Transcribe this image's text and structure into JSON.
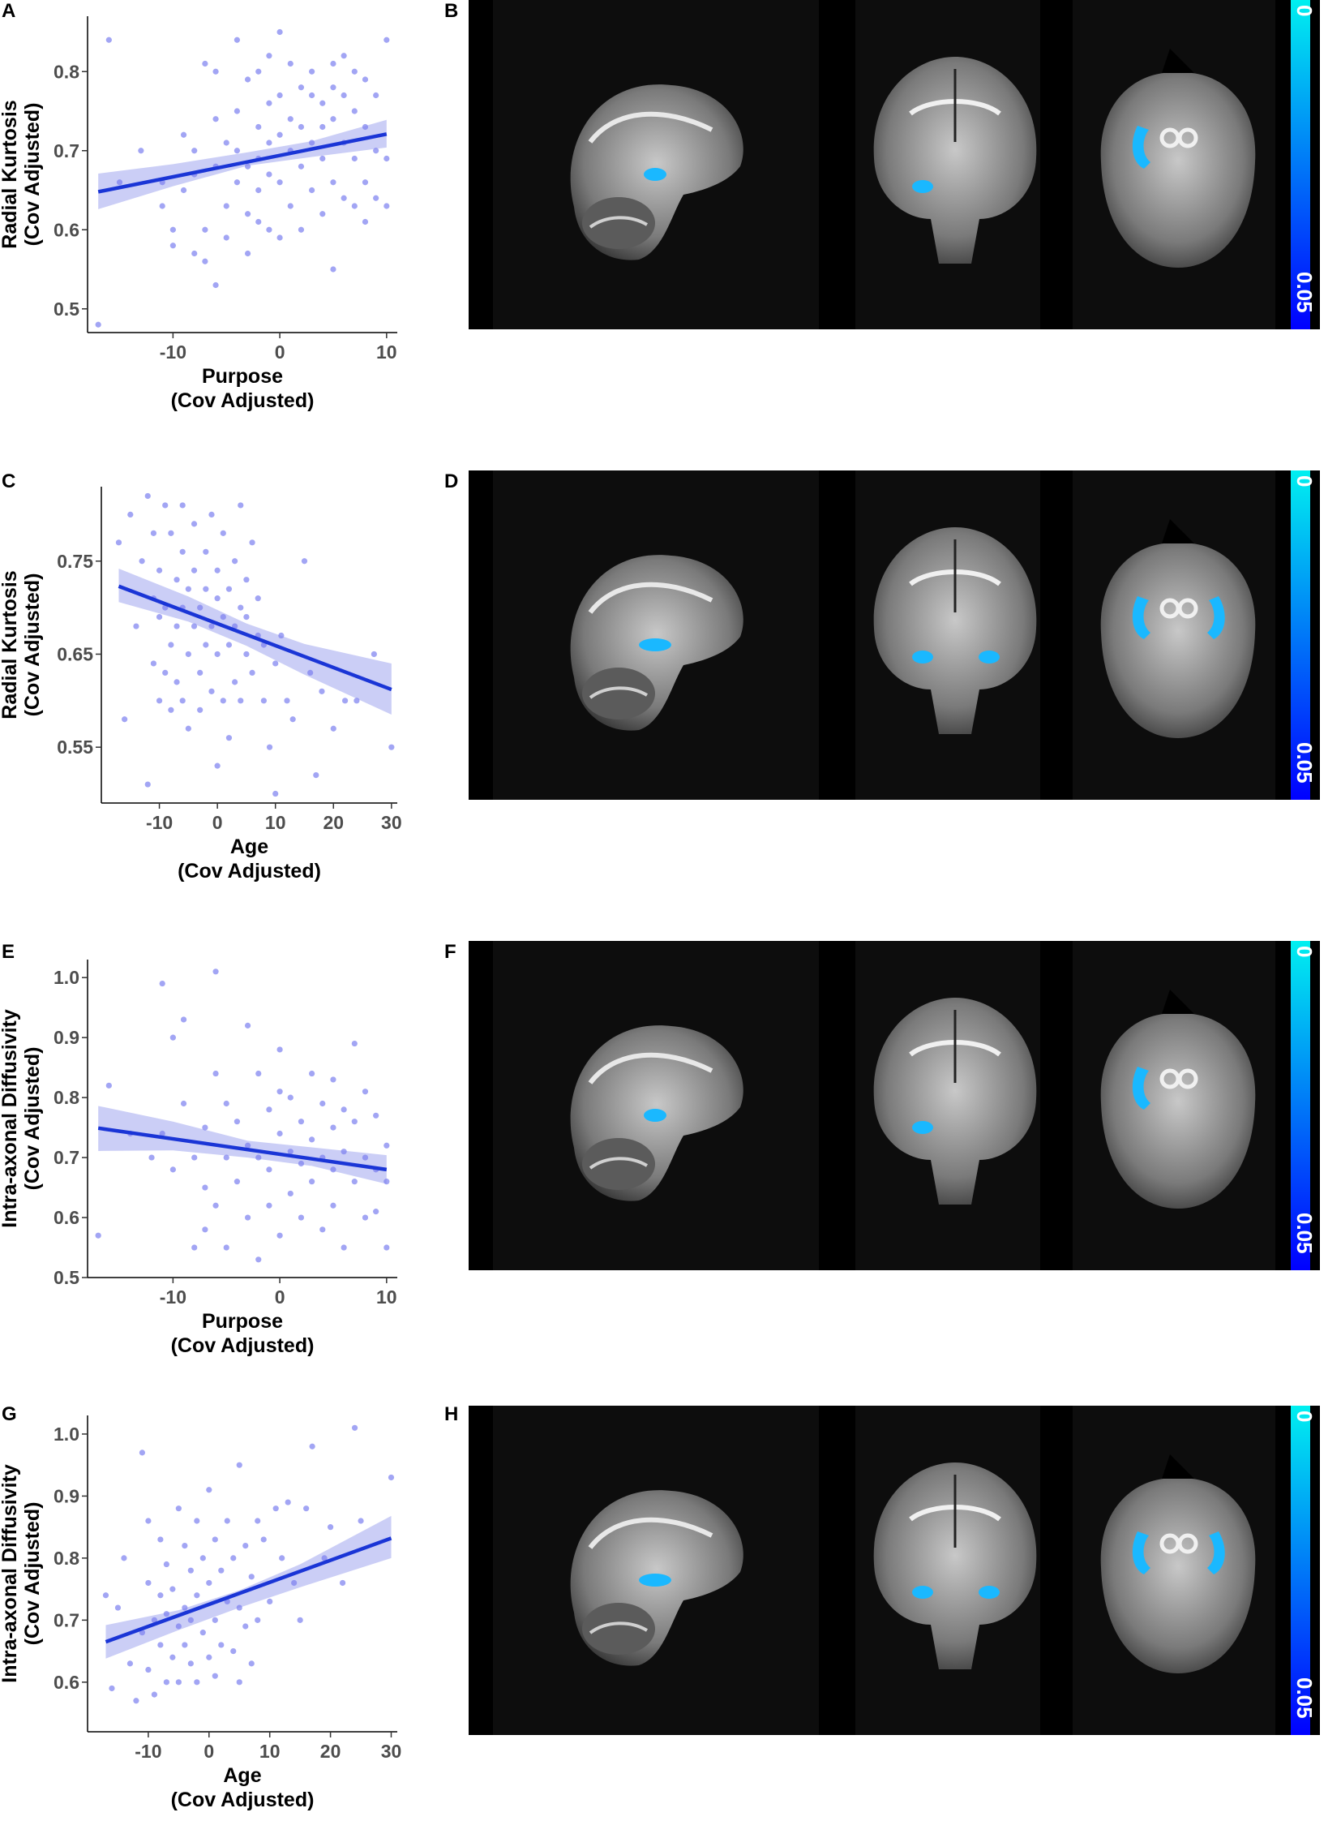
{
  "panel_letters": {
    "A": "A",
    "B": "B",
    "C": "C",
    "D": "D",
    "E": "E",
    "F": "F",
    "G": "G",
    "H": "H"
  },
  "colors": {
    "line": "#1a35d6",
    "points": "#7b7ff0",
    "band": "#b9bdf3",
    "colorbar_top": "#00f0f0",
    "colorbar_bottom": "#0000ff",
    "highlight": "#1ab8ff"
  },
  "colorbar": {
    "top_label": "0",
    "bottom_label": "0.05"
  },
  "brain_views": [
    "sagittal",
    "coronal",
    "axial"
  ],
  "chart_data": [
    {
      "type": "scatter",
      "panel": "A",
      "xlabel": "Purpose\n(Cov Adjusted)",
      "ylabel": "Radial Kurtosis\n(Cov Adjusted)",
      "xlim": [
        -18,
        11
      ],
      "ylim": [
        0.47,
        0.87
      ],
      "xticks": [
        -10,
        0,
        10
      ],
      "xtick_labels": [
        "-10",
        "0",
        "10"
      ],
      "yticks": [
        0.5,
        0.6,
        0.7,
        0.8
      ],
      "ytick_labels": [
        "0.5",
        "0.6",
        "0.7",
        "0.8"
      ],
      "fit_line": [
        [
          -17,
          0.648
        ],
        [
          10,
          0.721
        ]
      ],
      "band": {
        "x": [
          -17,
          -10,
          -3,
          3,
          10
        ],
        "lo": [
          0.626,
          0.655,
          0.681,
          0.692,
          0.704
        ],
        "hi": [
          0.671,
          0.683,
          0.698,
          0.712,
          0.739
        ]
      },
      "points": [
        [
          -17,
          0.48
        ],
        [
          -16,
          0.84
        ],
        [
          -15,
          0.66
        ],
        [
          -13,
          0.7
        ],
        [
          -11,
          0.66
        ],
        [
          -11,
          0.63
        ],
        [
          -10,
          0.58
        ],
        [
          -10,
          0.6
        ],
        [
          -9,
          0.65
        ],
        [
          -9,
          0.72
        ],
        [
          -8,
          0.67
        ],
        [
          -8,
          0.57
        ],
        [
          -8,
          0.7
        ],
        [
          -7,
          0.81
        ],
        [
          -7,
          0.56
        ],
        [
          -7,
          0.6
        ],
        [
          -6,
          0.8
        ],
        [
          -6,
          0.53
        ],
        [
          -6,
          0.68
        ],
        [
          -6,
          0.74
        ],
        [
          -5,
          0.63
        ],
        [
          -5,
          0.71
        ],
        [
          -5,
          0.59
        ],
        [
          -4,
          0.84
        ],
        [
          -4,
          0.75
        ],
        [
          -4,
          0.66
        ],
        [
          -4,
          0.7
        ],
        [
          -3,
          0.62
        ],
        [
          -3,
          0.57
        ],
        [
          -3,
          0.68
        ],
        [
          -3,
          0.79
        ],
        [
          -2,
          0.8
        ],
        [
          -2,
          0.73
        ],
        [
          -2,
          0.61
        ],
        [
          -2,
          0.69
        ],
        [
          -2,
          0.65
        ],
        [
          -1,
          0.76
        ],
        [
          -1,
          0.71
        ],
        [
          -1,
          0.67
        ],
        [
          -1,
          0.6
        ],
        [
          -1,
          0.82
        ],
        [
          0,
          0.85
        ],
        [
          0,
          0.72
        ],
        [
          0,
          0.66
        ],
        [
          0,
          0.59
        ],
        [
          0,
          0.77
        ],
        [
          1,
          0.74
        ],
        [
          1,
          0.7
        ],
        [
          1,
          0.63
        ],
        [
          1,
          0.81
        ],
        [
          2,
          0.78
        ],
        [
          2,
          0.68
        ],
        [
          2,
          0.6
        ],
        [
          2,
          0.73
        ],
        [
          3,
          0.77
        ],
        [
          3,
          0.71
        ],
        [
          3,
          0.65
        ],
        [
          3,
          0.8
        ],
        [
          4,
          0.76
        ],
        [
          4,
          0.69
        ],
        [
          4,
          0.62
        ],
        [
          4,
          0.73
        ],
        [
          5,
          0.81
        ],
        [
          5,
          0.74
        ],
        [
          5,
          0.66
        ],
        [
          5,
          0.55
        ],
        [
          5,
          0.78
        ],
        [
          6,
          0.82
        ],
        [
          6,
          0.71
        ],
        [
          6,
          0.64
        ],
        [
          6,
          0.77
        ],
        [
          7,
          0.8
        ],
        [
          7,
          0.69
        ],
        [
          7,
          0.63
        ],
        [
          7,
          0.75
        ],
        [
          8,
          0.73
        ],
        [
          8,
          0.66
        ],
        [
          8,
          0.61
        ],
        [
          8,
          0.79
        ],
        [
          9,
          0.77
        ],
        [
          9,
          0.7
        ],
        [
          9,
          0.64
        ],
        [
          10,
          0.84
        ],
        [
          10,
          0.69
        ],
        [
          10,
          0.63
        ]
      ]
    },
    {
      "type": "scatter",
      "panel": "C",
      "xlabel": "Age\n(Cov Adjusted)",
      "ylabel": "Radial Kurtosis\n(Cov Adjusted)",
      "xlim": [
        -20,
        31
      ],
      "ylim": [
        0.49,
        0.83
      ],
      "xticks": [
        -10,
        0,
        10,
        20,
        30
      ],
      "xtick_labels": [
        "-10",
        "0",
        "10",
        "20",
        "30"
      ],
      "yticks": [
        0.55,
        0.65,
        0.75
      ],
      "ytick_labels": [
        "0.55",
        "0.65",
        "0.75"
      ],
      "fit_line": [
        [
          -17,
          0.723
        ],
        [
          30,
          0.612
        ]
      ],
      "band": {
        "x": [
          -17,
          -5,
          5,
          15,
          30
        ],
        "lo": [
          0.706,
          0.685,
          0.659,
          0.628,
          0.585
        ],
        "hi": [
          0.742,
          0.712,
          0.683,
          0.661,
          0.64
        ]
      },
      "points": [
        [
          -17,
          0.77
        ],
        [
          -16,
          0.58
        ],
        [
          -15,
          0.8
        ],
        [
          -14,
          0.68
        ],
        [
          -13,
          0.75
        ],
        [
          -12,
          0.82
        ],
        [
          -12,
          0.51
        ],
        [
          -11,
          0.71
        ],
        [
          -11,
          0.64
        ],
        [
          -11,
          0.78
        ],
        [
          -10,
          0.69
        ],
        [
          -10,
          0.6
        ],
        [
          -10,
          0.74
        ],
        [
          -9,
          0.63
        ],
        [
          -9,
          0.81
        ],
        [
          -9,
          0.7
        ],
        [
          -8,
          0.78
        ],
        [
          -8,
          0.66
        ],
        [
          -8,
          0.59
        ],
        [
          -7,
          0.73
        ],
        [
          -7,
          0.68
        ],
        [
          -7,
          0.62
        ],
        [
          -6,
          0.81
        ],
        [
          -6,
          0.7
        ],
        [
          -6,
          0.76
        ],
        [
          -6,
          0.6
        ],
        [
          -5,
          0.65
        ],
        [
          -5,
          0.72
        ],
        [
          -5,
          0.57
        ],
        [
          -4,
          0.79
        ],
        [
          -4,
          0.68
        ],
        [
          -4,
          0.74
        ],
        [
          -3,
          0.63
        ],
        [
          -3,
          0.7
        ],
        [
          -3,
          0.59
        ],
        [
          -2,
          0.76
        ],
        [
          -2,
          0.66
        ],
        [
          -2,
          0.72
        ],
        [
          -1,
          0.8
        ],
        [
          -1,
          0.68
        ],
        [
          -1,
          0.61
        ],
        [
          0,
          0.74
        ],
        [
          0,
          0.65
        ],
        [
          0,
          0.71
        ],
        [
          0,
          0.53
        ],
        [
          1,
          0.69
        ],
        [
          1,
          0.78
        ],
        [
          1,
          0.6
        ],
        [
          2,
          0.72
        ],
        [
          2,
          0.66
        ],
        [
          2,
          0.56
        ],
        [
          3,
          0.75
        ],
        [
          3,
          0.68
        ],
        [
          3,
          0.62
        ],
        [
          4,
          0.81
        ],
        [
          4,
          0.7
        ],
        [
          4,
          0.6
        ],
        [
          5,
          0.73
        ],
        [
          5,
          0.65
        ],
        [
          5,
          0.69
        ],
        [
          6,
          0.77
        ],
        [
          6,
          0.63
        ],
        [
          7,
          0.67
        ],
        [
          7,
          0.71
        ],
        [
          8,
          0.6
        ],
        [
          8,
          0.66
        ],
        [
          9,
          0.55
        ],
        [
          10,
          0.64
        ],
        [
          10,
          0.5
        ],
        [
          11,
          0.67
        ],
        [
          12,
          0.6
        ],
        [
          13,
          0.58
        ],
        [
          15,
          0.75
        ],
        [
          16,
          0.63
        ],
        [
          17,
          0.52
        ],
        [
          18,
          0.61
        ],
        [
          20,
          0.57
        ],
        [
          22,
          0.6
        ],
        [
          24,
          0.6
        ],
        [
          27,
          0.65
        ],
        [
          30,
          0.55
        ]
      ]
    },
    {
      "type": "scatter",
      "panel": "E",
      "xlabel": "Purpose\n(Cov Adjusted)",
      "ylabel": "Intra-axonal Diffusivity\n(Cov Adjusted)",
      "xlim": [
        -18,
        11
      ],
      "ylim": [
        0.5,
        1.03
      ],
      "xticks": [
        -10,
        0,
        10
      ],
      "xtick_labels": [
        "-10",
        "0",
        "10"
      ],
      "yticks": [
        0.5,
        0.6,
        0.7,
        0.8,
        0.9,
        1.0
      ],
      "ytick_labels": [
        "0.5",
        "0.6",
        "0.7",
        "0.8",
        "0.9",
        "1.0"
      ],
      "fit_line": [
        [
          -17,
          0.749
        ],
        [
          10,
          0.68
        ]
      ],
      "band": {
        "x": [
          -17,
          -10,
          -3,
          3,
          10
        ],
        "lo": [
          0.711,
          0.712,
          0.7,
          0.686,
          0.656
        ],
        "hi": [
          0.786,
          0.76,
          0.728,
          0.717,
          0.704
        ]
      },
      "points": [
        [
          -17,
          0.57
        ],
        [
          -16,
          0.82
        ],
        [
          -14,
          0.74
        ],
        [
          -12,
          0.7
        ],
        [
          -11,
          0.99
        ],
        [
          -11,
          0.74
        ],
        [
          -10,
          0.9
        ],
        [
          -10,
          0.68
        ],
        [
          -9,
          0.93
        ],
        [
          -9,
          0.79
        ],
        [
          -8,
          0.7
        ],
        [
          -8,
          0.55
        ],
        [
          -7,
          0.75
        ],
        [
          -7,
          0.65
        ],
        [
          -7,
          0.58
        ],
        [
          -6,
          1.01
        ],
        [
          -6,
          0.84
        ],
        [
          -6,
          0.62
        ],
        [
          -5,
          0.79
        ],
        [
          -5,
          0.7
        ],
        [
          -5,
          0.55
        ],
        [
          -4,
          0.76
        ],
        [
          -4,
          0.66
        ],
        [
          -3,
          0.92
        ],
        [
          -3,
          0.72
        ],
        [
          -3,
          0.6
        ],
        [
          -2,
          0.84
        ],
        [
          -2,
          0.7
        ],
        [
          -2,
          0.53
        ],
        [
          -1,
          0.78
        ],
        [
          -1,
          0.68
        ],
        [
          -1,
          0.62
        ],
        [
          0,
          0.81
        ],
        [
          0,
          0.74
        ],
        [
          0,
          0.57
        ],
        [
          0,
          0.88
        ],
        [
          1,
          0.8
        ],
        [
          1,
          0.71
        ],
        [
          1,
          0.64
        ],
        [
          2,
          0.76
        ],
        [
          2,
          0.69
        ],
        [
          2,
          0.6
        ],
        [
          3,
          0.84
        ],
        [
          3,
          0.73
        ],
        [
          3,
          0.66
        ],
        [
          4,
          0.79
        ],
        [
          4,
          0.7
        ],
        [
          4,
          0.58
        ],
        [
          5,
          0.83
        ],
        [
          5,
          0.75
        ],
        [
          5,
          0.68
        ],
        [
          5,
          0.62
        ],
        [
          6,
          0.78
        ],
        [
          6,
          0.71
        ],
        [
          6,
          0.55
        ],
        [
          7,
          0.89
        ],
        [
          7,
          0.76
        ],
        [
          7,
          0.66
        ],
        [
          8,
          0.81
        ],
        [
          8,
          0.7
        ],
        [
          8,
          0.6
        ],
        [
          9,
          0.77
        ],
        [
          9,
          0.68
        ],
        [
          9,
          0.61
        ],
        [
          10,
          0.72
        ],
        [
          10,
          0.66
        ],
        [
          10,
          0.55
        ]
      ]
    },
    {
      "type": "scatter",
      "panel": "G",
      "xlabel": "Age\n(Cov Adjusted)",
      "ylabel": "Intra-axonal Diffusivity\n(Cov Adjusted)",
      "xlim": [
        -20,
        31
      ],
      "ylim": [
        0.52,
        1.03
      ],
      "xticks": [
        -10,
        0,
        10,
        20,
        30
      ],
      "xtick_labels": [
        "-10",
        "0",
        "10",
        "20",
        "30"
      ],
      "yticks": [
        0.6,
        0.7,
        0.8,
        0.9,
        1.0
      ],
      "ytick_labels": [
        "0.6",
        "0.7",
        "0.8",
        "0.9",
        "1.0"
      ],
      "fit_line": [
        [
          -17,
          0.665
        ],
        [
          30,
          0.832
        ]
      ],
      "band": {
        "x": [
          -17,
          -5,
          5,
          15,
          30
        ],
        "lo": [
          0.638,
          0.684,
          0.72,
          0.753,
          0.8
        ],
        "hi": [
          0.692,
          0.716,
          0.748,
          0.79,
          0.868
        ]
      },
      "points": [
        [
          -17,
          0.74
        ],
        [
          -16,
          0.59
        ],
        [
          -15,
          0.72
        ],
        [
          -14,
          0.8
        ],
        [
          -13,
          0.63
        ],
        [
          -12,
          0.57
        ],
        [
          -11,
          0.97
        ],
        [
          -11,
          0.68
        ],
        [
          -10,
          0.76
        ],
        [
          -10,
          0.62
        ],
        [
          -10,
          0.86
        ],
        [
          -9,
          0.7
        ],
        [
          -9,
          0.58
        ],
        [
          -8,
          0.83
        ],
        [
          -8,
          0.66
        ],
        [
          -8,
          0.74
        ],
        [
          -7,
          0.6
        ],
        [
          -7,
          0.71
        ],
        [
          -7,
          0.79
        ],
        [
          -6,
          0.64
        ],
        [
          -6,
          0.75
        ],
        [
          -5,
          0.88
        ],
        [
          -5,
          0.69
        ],
        [
          -5,
          0.6
        ],
        [
          -4,
          0.82
        ],
        [
          -4,
          0.66
        ],
        [
          -4,
          0.72
        ],
        [
          -3,
          0.78
        ],
        [
          -3,
          0.63
        ],
        [
          -3,
          0.7
        ],
        [
          -2,
          0.86
        ],
        [
          -2,
          0.74
        ],
        [
          -2,
          0.6
        ],
        [
          -1,
          0.8
        ],
        [
          -1,
          0.68
        ],
        [
          0,
          0.76
        ],
        [
          0,
          0.91
        ],
        [
          0,
          0.64
        ],
        [
          1,
          0.83
        ],
        [
          1,
          0.7
        ],
        [
          1,
          0.61
        ],
        [
          2,
          0.78
        ],
        [
          2,
          0.66
        ],
        [
          3,
          0.86
        ],
        [
          3,
          0.73
        ],
        [
          4,
          0.8
        ],
        [
          4,
          0.65
        ],
        [
          5,
          0.95
        ],
        [
          5,
          0.72
        ],
        [
          5,
          0.6
        ],
        [
          6,
          0.82
        ],
        [
          6,
          0.69
        ],
        [
          7,
          0.77
        ],
        [
          7,
          0.63
        ],
        [
          8,
          0.86
        ],
        [
          8,
          0.7
        ],
        [
          9,
          0.83
        ],
        [
          10,
          0.73
        ],
        [
          11,
          0.88
        ],
        [
          12,
          0.8
        ],
        [
          13,
          0.89
        ],
        [
          14,
          0.76
        ],
        [
          15,
          0.7
        ],
        [
          16,
          0.88
        ],
        [
          17,
          0.98
        ],
        [
          19,
          0.8
        ],
        [
          20,
          0.85
        ],
        [
          22,
          0.76
        ],
        [
          24,
          1.01
        ],
        [
          25,
          0.86
        ],
        [
          30,
          0.93
        ]
      ]
    }
  ]
}
